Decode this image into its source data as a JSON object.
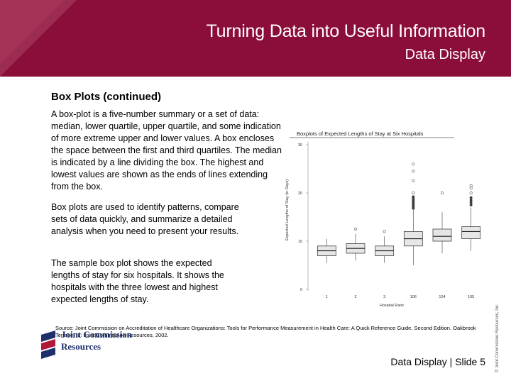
{
  "header": {
    "title": "Turning Data into Useful Information",
    "subtitle": "Data Display"
  },
  "content": {
    "heading": "Box Plots (continued)",
    "paragraph1": "A box-plot is a five-number summary or a set of data: median, lower quartile, upper quartile, and some indication of more extreme upper and lower values. A box encloses the space between the first and third quartiles. The median is indicated by a line dividing the box. The highest and lowest values are shown as the ends of lines extending from the box.",
    "paragraph2": "Box plots are used to identify patterns, compare sets of data quickly, and summarize a detailed analysis when you need to present your results.",
    "paragraph3": "The sample box plot shows the expected lengths of stay for six hospitals. It shows the hospitals with the three lowest and highest  expected lengths of stay.",
    "source": "Source: Joint Commission on Accreditation of Healthcare Organizations: Tools for Performance Measurement in Health Care: A Quick Reference Guide, Second Edition. Oakbrook Terrace, IL: Joint Commission Resources, 2002."
  },
  "logo": {
    "line1": "Joint Commission",
    "line2": "Resources"
  },
  "footer": {
    "slide_label": "Data Display | Slide 5"
  },
  "copyright": "© Joint Commission Resources, Inc.",
  "colors": {
    "header_bg": "#8b0e3a",
    "logo_blue": "#1e2f6b",
    "logo_red": "#b0173a"
  },
  "chart_data": {
    "type": "box",
    "title": "Boxplots of Expected Lengths of Stay at Six Hospitals",
    "xlabel": "Hospital Rank",
    "ylabel": "Expected Lengths of Stay (in Days)",
    "ylim": [
      0,
      30
    ],
    "yticks": [
      0,
      10,
      20,
      30
    ],
    "categories": [
      "1",
      "2",
      "3",
      "106",
      "104",
      "105"
    ],
    "boxes": [
      {
        "label": "1",
        "whisker_low": 5.5,
        "q1": 7.0,
        "median": 8.0,
        "q3": 9.0,
        "whisker_high": 10.5,
        "outliers": []
      },
      {
        "label": "2",
        "whisker_low": 6.0,
        "q1": 7.5,
        "median": 8.5,
        "q3": 9.5,
        "whisker_high": 11.5,
        "outliers": [
          12.5
        ]
      },
      {
        "label": "3",
        "whisker_low": 5.5,
        "q1": 7.0,
        "median": 8.0,
        "q3": 9.0,
        "whisker_high": 11.0,
        "outliers": [
          12.0
        ]
      },
      {
        "label": "106",
        "whisker_low": 5.0,
        "q1": 9.0,
        "median": 10.5,
        "q3": 12.0,
        "whisker_high": 16.5,
        "outliers": [
          16.8,
          17.1,
          17.4,
          17.7,
          18.0,
          18.3,
          18.6,
          18.9,
          19.2,
          20.0,
          22.5,
          24.5,
          26.0
        ]
      },
      {
        "label": "104",
        "whisker_low": 7.5,
        "q1": 10.0,
        "median": 11.0,
        "q3": 12.5,
        "whisker_high": 16.0,
        "outliers": [
          20.0
        ]
      },
      {
        "label": "105",
        "whisker_low": 8.0,
        "q1": 10.5,
        "median": 12.0,
        "q3": 13.0,
        "whisker_high": 17.0,
        "outliers": [
          17.5,
          18.0,
          18.5,
          19.0,
          20.0,
          21.0,
          21.5
        ]
      }
    ]
  }
}
